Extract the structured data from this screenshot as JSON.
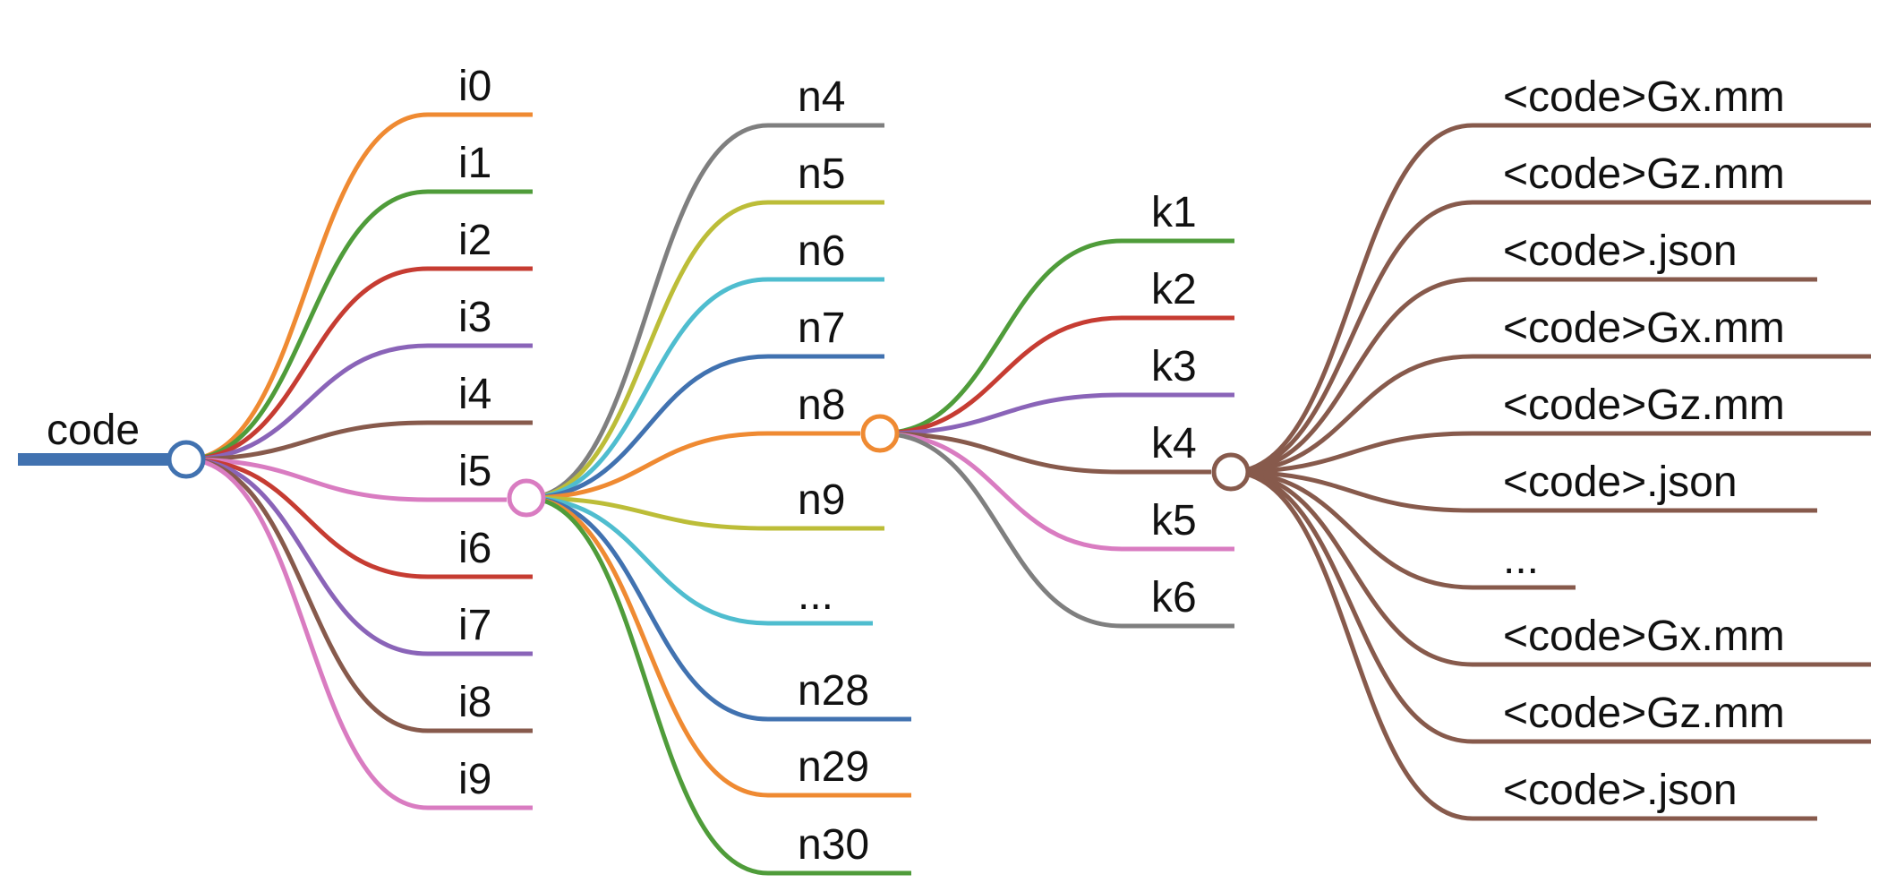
{
  "tree": {
    "root_label": "code",
    "colors": {
      "blue": "#4172b0",
      "orange": "#ef8a32",
      "green": "#4f9c3a",
      "red": "#c63c32",
      "purple": "#8a64b8",
      "brown": "#875a4c",
      "pink": "#d97cc1",
      "gray": "#7f7f7f",
      "olive": "#bcbd38",
      "cyan": "#4fbdcf"
    },
    "level1": [
      {
        "label": "i0",
        "color": "orange"
      },
      {
        "label": "i1",
        "color": "green"
      },
      {
        "label": "i2",
        "color": "red"
      },
      {
        "label": "i3",
        "color": "purple"
      },
      {
        "label": "i4",
        "color": "brown"
      },
      {
        "label": "i5",
        "color": "pink",
        "expanded": true
      },
      {
        "label": "i6",
        "color": "red"
      },
      {
        "label": "i7",
        "color": "purple"
      },
      {
        "label": "i8",
        "color": "brown"
      },
      {
        "label": "i9",
        "color": "pink"
      }
    ],
    "level2": [
      {
        "label": "n4",
        "color": "gray"
      },
      {
        "label": "n5",
        "color": "olive"
      },
      {
        "label": "n6",
        "color": "cyan"
      },
      {
        "label": "n7",
        "color": "blue"
      },
      {
        "label": "n8",
        "color": "orange",
        "expanded": true
      },
      {
        "label": "n9",
        "color": "olive"
      },
      {
        "label": "...",
        "color": "cyan"
      },
      {
        "label": "n28",
        "color": "blue"
      },
      {
        "label": "n29",
        "color": "orange"
      },
      {
        "label": "n30",
        "color": "green"
      }
    ],
    "level3": [
      {
        "label": "k1",
        "color": "green"
      },
      {
        "label": "k2",
        "color": "red"
      },
      {
        "label": "k3",
        "color": "purple"
      },
      {
        "label": "k4",
        "color": "brown",
        "expanded": true
      },
      {
        "label": "k5",
        "color": "pink"
      },
      {
        "label": "k6",
        "color": "gray"
      }
    ],
    "level4": [
      {
        "label": "<code>Gx.mm",
        "color": "brown"
      },
      {
        "label": "<code>Gz.mm",
        "color": "brown"
      },
      {
        "label": "<code>.json",
        "color": "brown"
      },
      {
        "label": "<code>Gx.mm",
        "color": "brown"
      },
      {
        "label": "<code>Gz.mm",
        "color": "brown"
      },
      {
        "label": "<code>.json",
        "color": "brown"
      },
      {
        "label": "...",
        "color": "brown"
      },
      {
        "label": "<code>Gx.mm",
        "color": "brown"
      },
      {
        "label": "<code>Gz.mm",
        "color": "brown"
      },
      {
        "label": "<code>.json",
        "color": "brown"
      }
    ]
  }
}
